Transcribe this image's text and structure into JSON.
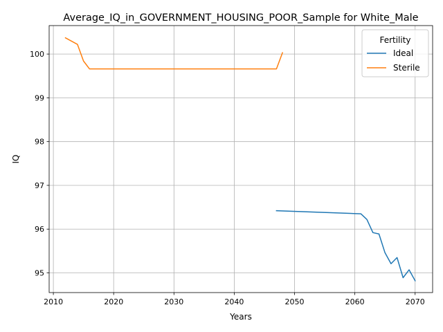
{
  "chart_data": {
    "type": "line",
    "title": "Average_IQ_in_GOVERNMENT_HOUSING_POOR_Sample for White_Male",
    "xlabel": "Years",
    "ylabel": "IQ",
    "xlim": [
      2009.3,
      2072.9
    ],
    "ylim": [
      94.55,
      100.65
    ],
    "x_ticks": [
      2010,
      2020,
      2030,
      2040,
      2050,
      2060,
      2070
    ],
    "y_ticks": [
      95,
      96,
      97,
      98,
      99,
      100
    ],
    "grid": true,
    "legend": {
      "title": "Fertility",
      "placement": "top-right"
    },
    "series": [
      {
        "name": "Ideal",
        "color": "#1f77b4",
        "x": [
          2047,
          2061,
          2062,
          2063,
          2064,
          2065,
          2066,
          2067,
          2068,
          2069,
          2070
        ],
        "values": [
          96.42,
          96.35,
          96.22,
          95.92,
          95.89,
          95.46,
          95.21,
          95.35,
          94.89,
          95.07,
          94.82
        ]
      },
      {
        "name": "Sterile",
        "color": "#ff7f0e",
        "x": [
          2012,
          2014,
          2015,
          2016,
          2047,
          2048
        ],
        "values": [
          100.37,
          100.22,
          99.84,
          99.66,
          99.66,
          100.03
        ]
      }
    ]
  }
}
